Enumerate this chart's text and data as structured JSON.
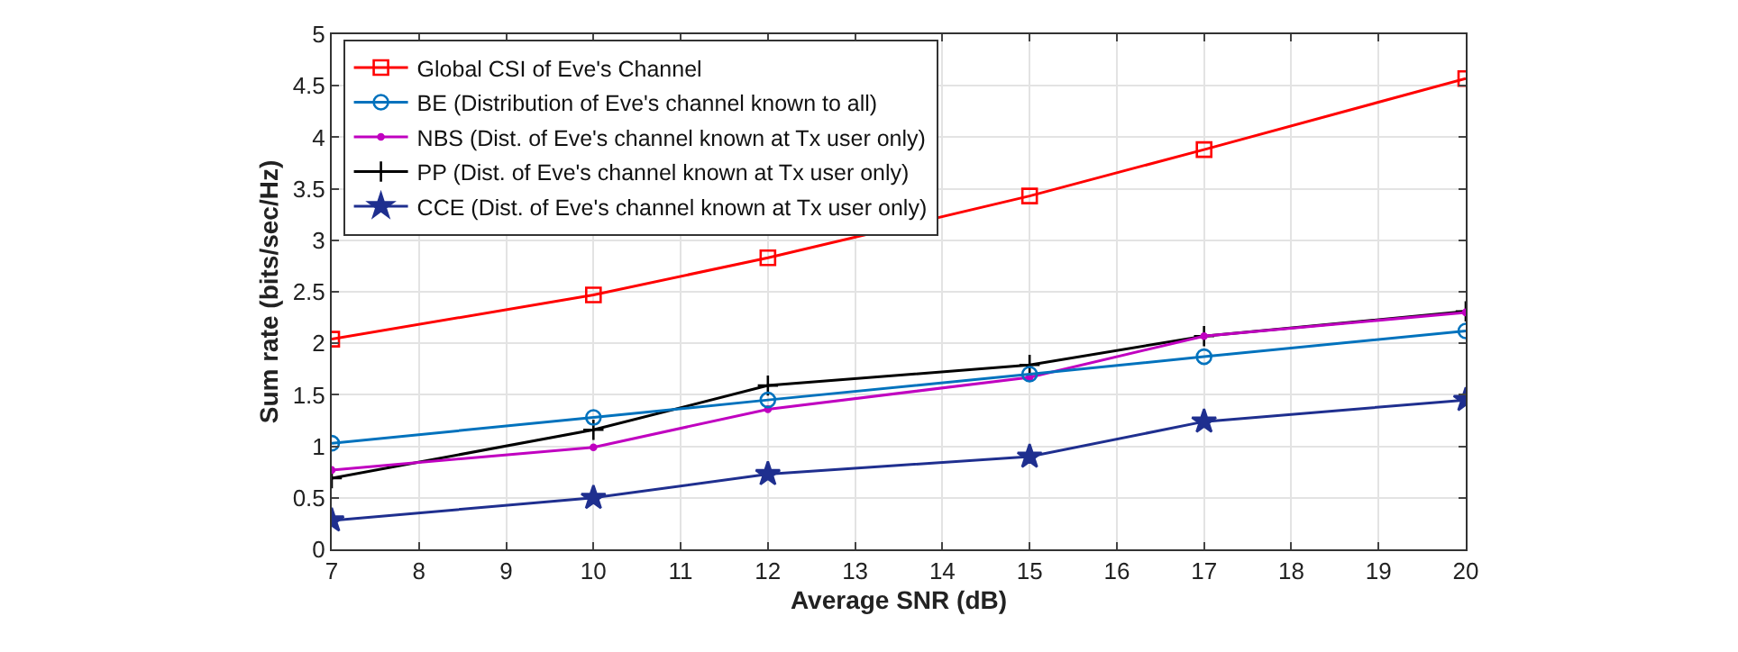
{
  "chart_data": {
    "type": "line",
    "xlabel": "Average SNR (dB)",
    "ylabel": "Sum rate (bits/sec/Hz)",
    "x": [
      7,
      10,
      12,
      15,
      17,
      20
    ],
    "series": [
      {
        "name": "Global CSI of Eve's Channel",
        "color": "#ff0000",
        "marker": "square",
        "values": [
          2.04,
          2.47,
          2.83,
          3.43,
          3.88,
          4.57
        ]
      },
      {
        "name": "BE (Distribution of Eve's channel known to all)",
        "color": "#0072bd",
        "marker": "circle",
        "values": [
          1.03,
          1.28,
          1.45,
          1.7,
          1.87,
          2.12
        ]
      },
      {
        "name": "NBS (Dist. of Eve's channel known at Tx user only)",
        "color": "#c000c0",
        "marker": "circle",
        "values": [
          0.77,
          0.99,
          1.36,
          1.67,
          2.07,
          2.3
        ]
      },
      {
        "name": "PP (Dist. of Eve's channel known at Tx user only)",
        "color": "#000000",
        "marker": "cross",
        "values": [
          0.69,
          1.16,
          1.59,
          1.79,
          2.07,
          2.31
        ]
      },
      {
        "name": "CCE (Dist. of Eve's channel known at Tx user only)",
        "color": "#1f2f8f",
        "marker": "star",
        "values": [
          0.28,
          0.5,
          0.73,
          0.9,
          1.24,
          1.45
        ]
      }
    ],
    "xlim": [
      7,
      20
    ],
    "xticks": [
      7,
      8,
      9,
      10,
      11,
      12,
      13,
      14,
      15,
      16,
      17,
      18,
      19,
      20
    ],
    "ylim": [
      0,
      5
    ],
    "yticks": [
      0,
      0.5,
      1,
      1.5,
      2,
      2.5,
      3,
      3.5,
      4,
      4.5,
      5
    ],
    "grid": true,
    "legend": "top left",
    "line_style": "solid"
  }
}
